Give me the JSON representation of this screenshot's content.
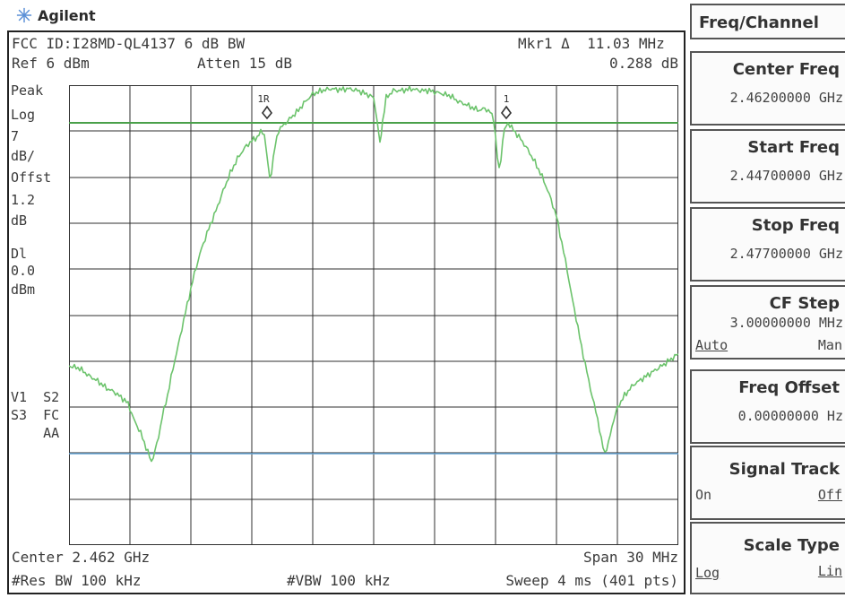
{
  "brand": {
    "name": "Agilent",
    "logo_icon": "agilent-spark-icon"
  },
  "header": {
    "title": "FCC ID:I28MD-QL4137 6 dB BW",
    "marker": "Mkr1 Δ  11.03 MHz",
    "ref_level": "Ref 6 dBm",
    "attenuation": "Atten 15 dB",
    "marker_delta_db": "0.288 dB"
  },
  "left_panel": {
    "lines": [
      "Peak",
      "Log",
      "7",
      "dB/",
      "Offst",
      "1.2",
      "dB",
      "Dl",
      "0.0",
      "dBm"
    ],
    "bottom_lines": [
      "V1  S2",
      "S3  FC",
      "    AA"
    ]
  },
  "markers": {
    "reference": "1R",
    "delta": "1"
  },
  "footer": {
    "center": "Center 2.462 GHz",
    "span": "Span 30 MHz",
    "rbw": "#Res BW 100 kHz",
    "vbw": "#VBW 100 kHz",
    "sweep": "Sweep 4 ms (401 pts)"
  },
  "softkeys": {
    "menu": "Freq/Channel",
    "center_freq": {
      "label": "Center Freq",
      "value": "2.46200000 GHz"
    },
    "start_freq": {
      "label": "Start Freq",
      "value": "2.44700000 GHz"
    },
    "stop_freq": {
      "label": "Stop Freq",
      "value": "2.47700000 GHz"
    },
    "cf_step": {
      "label": "CF Step",
      "value": "3.00000000 MHz",
      "left": "Auto",
      "right": "Man"
    },
    "freq_offset": {
      "label": "Freq Offset",
      "value": "0.00000000  Hz"
    },
    "signal_track": {
      "label": "Signal Track",
      "left": "On",
      "right": "Off"
    },
    "scale_type": {
      "label": "Scale Type",
      "left": "Log",
      "right": "Lin"
    }
  },
  "colors": {
    "trace": "#6cc36c",
    "display_line": "#4aa04a",
    "reference_line": "#6aa9d8",
    "grid": "#2f2f2f"
  }
}
